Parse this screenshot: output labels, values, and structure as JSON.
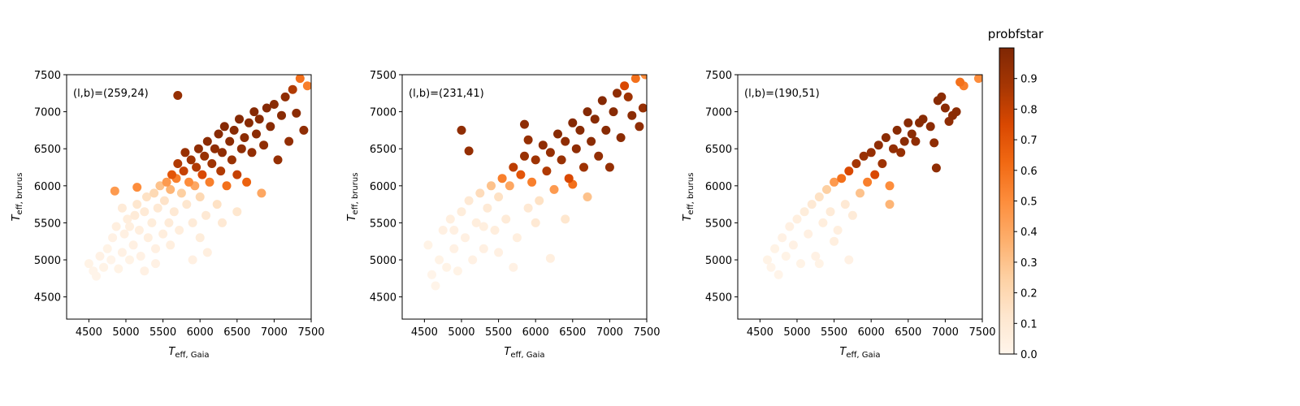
{
  "chart_data": [
    {
      "type": "scatter",
      "annotation": "(l,b)=(259,24)",
      "xlabel": {
        "main": "T",
        "sub": "eff, Gaia"
      },
      "ylabel": {
        "main": "T",
        "sub": "eff, brurus"
      },
      "xlim": [
        4200,
        7500
      ],
      "ylim": [
        4200,
        7500
      ],
      "xticks": [
        4500,
        5000,
        5500,
        6000,
        6500,
        7000,
        7500
      ],
      "yticks": [
        4500,
        5000,
        5500,
        6000,
        6500,
        7000,
        7500
      ],
      "points": [
        [
          4500,
          4950,
          0.02
        ],
        [
          4560,
          4850,
          0.01
        ],
        [
          4600,
          4780,
          0.01
        ],
        [
          4650,
          5050,
          0.03
        ],
        [
          4700,
          4900,
          0.02
        ],
        [
          4750,
          5150,
          0.02
        ],
        [
          4800,
          5000,
          0.01
        ],
        [
          4820,
          5300,
          0.03
        ],
        [
          4870,
          5450,
          0.05
        ],
        [
          4900,
          4880,
          0.02
        ],
        [
          4950,
          5100,
          0.03
        ],
        [
          4980,
          5350,
          0.04
        ],
        [
          5020,
          5550,
          0.06
        ],
        [
          5050,
          5000,
          0.02
        ],
        [
          5100,
          5200,
          0.04
        ],
        [
          5120,
          5600,
          0.08
        ],
        [
          5150,
          5750,
          0.12
        ],
        [
          5180,
          5400,
          0.05
        ],
        [
          5200,
          5050,
          0.03
        ],
        [
          5250,
          5650,
          0.09
        ],
        [
          5280,
          5850,
          0.15
        ],
        [
          5300,
          5300,
          0.05
        ],
        [
          5350,
          5500,
          0.07
        ],
        [
          5380,
          5900,
          0.2
        ],
        [
          5400,
          5150,
          0.04
        ],
        [
          5430,
          5700,
          0.1
        ],
        [
          5460,
          6000,
          0.3
        ],
        [
          5500,
          5350,
          0.06
        ],
        [
          5520,
          5800,
          0.14
        ],
        [
          5550,
          6050,
          0.45
        ],
        [
          5580,
          5500,
          0.08
        ],
        [
          5600,
          5950,
          0.35
        ],
        [
          5620,
          6150,
          0.7
        ],
        [
          5650,
          5650,
          0.1
        ],
        [
          5680,
          6100,
          0.55
        ],
        [
          5700,
          6300,
          0.85
        ],
        [
          5720,
          5400,
          0.06
        ],
        [
          5750,
          5900,
          0.25
        ],
        [
          5780,
          6200,
          0.8
        ],
        [
          5800,
          6450,
          0.92
        ],
        [
          5820,
          5750,
          0.12
        ],
        [
          5850,
          6050,
          0.5
        ],
        [
          5880,
          6350,
          0.9
        ],
        [
          5900,
          5500,
          0.08
        ],
        [
          5930,
          6000,
          0.4
        ],
        [
          5950,
          6250,
          0.85
        ],
        [
          5980,
          6500,
          0.95
        ],
        [
          6000,
          5850,
          0.2
        ],
        [
          6030,
          6150,
          0.75
        ],
        [
          6060,
          6400,
          0.92
        ],
        [
          6080,
          5600,
          0.1
        ],
        [
          6100,
          6600,
          0.96
        ],
        [
          6130,
          6050,
          0.55
        ],
        [
          6160,
          6300,
          0.9
        ],
        [
          6200,
          6500,
          0.95
        ],
        [
          6230,
          5750,
          0.15
        ],
        [
          6250,
          6700,
          0.97
        ],
        [
          6280,
          6200,
          0.85
        ],
        [
          6300,
          6450,
          0.95
        ],
        [
          6330,
          6800,
          0.98
        ],
        [
          6360,
          6000,
          0.6
        ],
        [
          6400,
          6600,
          0.96
        ],
        [
          6430,
          6350,
          0.92
        ],
        [
          6460,
          6750,
          0.97
        ],
        [
          6500,
          6150,
          0.8
        ],
        [
          6530,
          6900,
          0.98
        ],
        [
          6560,
          6500,
          0.95
        ],
        [
          6600,
          6650,
          0.96
        ],
        [
          6630,
          6050,
          0.65
        ],
        [
          6660,
          6850,
          0.97
        ],
        [
          6700,
          6450,
          0.94
        ],
        [
          6730,
          7000,
          0.98
        ],
        [
          6760,
          6700,
          0.96
        ],
        [
          6800,
          6900,
          0.97
        ],
        [
          6830,
          5900,
          0.4
        ],
        [
          6860,
          6550,
          0.95
        ],
        [
          6900,
          7050,
          0.98
        ],
        [
          6950,
          6800,
          0.97
        ],
        [
          7000,
          7100,
          0.97
        ],
        [
          7050,
          6350,
          0.93
        ],
        [
          7100,
          6950,
          0.97
        ],
        [
          7150,
          7200,
          0.95
        ],
        [
          7200,
          6600,
          0.94
        ],
        [
          7250,
          7300,
          0.85
        ],
        [
          7300,
          6980,
          0.96
        ],
        [
          7350,
          7450,
          0.6
        ],
        [
          7400,
          6750,
          0.95
        ],
        [
          7450,
          7350,
          0.55
        ],
        [
          5700,
          7220,
          0.93
        ],
        [
          4850,
          5930,
          0.45
        ],
        [
          5150,
          5980,
          0.5
        ],
        [
          5250,
          4850,
          0.03
        ],
        [
          5900,
          5000,
          0.04
        ],
        [
          6100,
          5100,
          0.05
        ],
        [
          5400,
          4950,
          0.03
        ],
        [
          5600,
          5200,
          0.05
        ],
        [
          6000,
          5300,
          0.07
        ],
        [
          6300,
          5500,
          0.1
        ],
        [
          6500,
          5650,
          0.12
        ],
        [
          4950,
          5700,
          0.08
        ],
        [
          5050,
          5450,
          0.05
        ]
      ]
    },
    {
      "type": "scatter",
      "annotation": "(l,b)=(231,41)",
      "xlabel": {
        "main": "T",
        "sub": "eff, Gaia"
      },
      "ylabel": {
        "main": "T",
        "sub": "eff, brurus"
      },
      "xlim": [
        4200,
        7500
      ],
      "ylim": [
        4200,
        7500
      ],
      "xticks": [
        4500,
        5000,
        5500,
        6000,
        6500,
        7000,
        7500
      ],
      "yticks": [
        4500,
        5000,
        5500,
        6000,
        6500,
        7000,
        7500
      ],
      "points": [
        [
          4550,
          5200,
          0.02
        ],
        [
          4600,
          4800,
          0.01
        ],
        [
          4650,
          4650,
          0.01
        ],
        [
          4700,
          5000,
          0.02
        ],
        [
          4750,
          5400,
          0.04
        ],
        [
          4800,
          4900,
          0.02
        ],
        [
          4850,
          5550,
          0.05
        ],
        [
          4900,
          5150,
          0.03
        ],
        [
          4950,
          4850,
          0.02
        ],
        [
          5000,
          5650,
          0.07
        ],
        [
          5050,
          5300,
          0.04
        ],
        [
          5100,
          5800,
          0.1
        ],
        [
          5150,
          5000,
          0.03
        ],
        [
          5200,
          5500,
          0.06
        ],
        [
          5250,
          5900,
          0.18
        ],
        [
          5300,
          5150,
          0.04
        ],
        [
          5350,
          5700,
          0.09
        ],
        [
          5400,
          6000,
          0.3
        ],
        [
          5450,
          5400,
          0.06
        ],
        [
          5500,
          5850,
          0.15
        ],
        [
          5550,
          6100,
          0.55
        ],
        [
          5600,
          5550,
          0.08
        ],
        [
          5650,
          6000,
          0.4
        ],
        [
          5700,
          6250,
          0.82
        ],
        [
          5750,
          5300,
          0.05
        ],
        [
          5800,
          6150,
          0.7
        ],
        [
          5850,
          6400,
          0.92
        ],
        [
          5900,
          5700,
          0.1
        ],
        [
          5950,
          6050,
          0.55
        ],
        [
          6000,
          6350,
          0.9
        ],
        [
          6050,
          5800,
          0.15
        ],
        [
          6100,
          6550,
          0.95
        ],
        [
          6150,
          6200,
          0.85
        ],
        [
          6200,
          6450,
          0.93
        ],
        [
          6250,
          5950,
          0.45
        ],
        [
          6300,
          6700,
          0.97
        ],
        [
          6350,
          6350,
          0.92
        ],
        [
          6400,
          6600,
          0.95
        ],
        [
          6450,
          6100,
          0.75
        ],
        [
          6500,
          6850,
          0.98
        ],
        [
          6550,
          6500,
          0.95
        ],
        [
          6600,
          6750,
          0.97
        ],
        [
          6650,
          6250,
          0.9
        ],
        [
          6700,
          7000,
          0.98
        ],
        [
          6750,
          6600,
          0.96
        ],
        [
          6800,
          6900,
          0.97
        ],
        [
          6850,
          6400,
          0.94
        ],
        [
          6900,
          7150,
          0.98
        ],
        [
          6950,
          6750,
          0.97
        ],
        [
          7000,
          6250,
          0.93
        ],
        [
          7050,
          7000,
          0.97
        ],
        [
          7100,
          7250,
          0.95
        ],
        [
          7150,
          6650,
          0.96
        ],
        [
          7200,
          7350,
          0.75
        ],
        [
          7250,
          7200,
          0.9
        ],
        [
          7300,
          6950,
          0.96
        ],
        [
          7350,
          7450,
          0.6
        ],
        [
          7400,
          6800,
          0.95
        ],
        [
          7450,
          7050,
          0.93
        ],
        [
          7480,
          7500,
          0.5
        ],
        [
          5000,
          6750,
          0.95
        ],
        [
          5100,
          6470,
          0.93
        ],
        [
          5850,
          6830,
          0.95
        ],
        [
          5900,
          6620,
          0.93
        ],
        [
          6200,
          5020,
          0.05
        ],
        [
          5700,
          4900,
          0.03
        ],
        [
          5500,
          5100,
          0.04
        ],
        [
          6000,
          5500,
          0.1
        ],
        [
          6400,
          5550,
          0.12
        ],
        [
          6700,
          5850,
          0.3
        ],
        [
          6500,
          6020,
          0.6
        ],
        [
          4900,
          5400,
          0.04
        ],
        [
          5300,
          5450,
          0.05
        ]
      ]
    },
    {
      "type": "scatter",
      "annotation": "(l,b)=(190,51)",
      "xlabel": {
        "main": "T",
        "sub": "eff, Gaia"
      },
      "ylabel": {
        "main": "T",
        "sub": "eff, brurus"
      },
      "xlim": [
        4200,
        7500
      ],
      "ylim": [
        4200,
        7500
      ],
      "xticks": [
        4500,
        5000,
        5500,
        6000,
        6500,
        7000,
        7500
      ],
      "yticks": [
        4500,
        5000,
        5500,
        6000,
        6500,
        7000,
        7500
      ],
      "points": [
        [
          4600,
          5000,
          0.02
        ],
        [
          4650,
          4900,
          0.01
        ],
        [
          4700,
          5150,
          0.02
        ],
        [
          4750,
          4800,
          0.01
        ],
        [
          4800,
          5300,
          0.03
        ],
        [
          4850,
          5050,
          0.02
        ],
        [
          4900,
          5450,
          0.04
        ],
        [
          4950,
          5200,
          0.03
        ],
        [
          5000,
          5550,
          0.05
        ],
        [
          5050,
          4950,
          0.02
        ],
        [
          5100,
          5650,
          0.07
        ],
        [
          5150,
          5350,
          0.04
        ],
        [
          5200,
          5750,
          0.1
        ],
        [
          5250,
          5050,
          0.03
        ],
        [
          5300,
          5850,
          0.15
        ],
        [
          5350,
          5500,
          0.06
        ],
        [
          5400,
          5950,
          0.25
        ],
        [
          5450,
          5650,
          0.08
        ],
        [
          5500,
          6050,
          0.45
        ],
        [
          5550,
          5400,
          0.05
        ],
        [
          5600,
          6100,
          0.6
        ],
        [
          5650,
          5750,
          0.1
        ],
        [
          5700,
          6200,
          0.75
        ],
        [
          5750,
          5600,
          0.08
        ],
        [
          5800,
          6300,
          0.88
        ],
        [
          5850,
          5900,
          0.3
        ],
        [
          5900,
          6400,
          0.92
        ],
        [
          5950,
          6050,
          0.55
        ],
        [
          6000,
          6450,
          0.93
        ],
        [
          6050,
          6150,
          0.75
        ],
        [
          6100,
          6550,
          0.95
        ],
        [
          6150,
          6300,
          0.9
        ],
        [
          6200,
          6650,
          0.96
        ],
        [
          6250,
          6000,
          0.5
        ],
        [
          6300,
          6500,
          0.94
        ],
        [
          6350,
          6750,
          0.97
        ],
        [
          6400,
          6450,
          0.93
        ],
        [
          6450,
          6600,
          0.96
        ],
        [
          6500,
          6850,
          0.97
        ],
        [
          6550,
          6700,
          0.96
        ],
        [
          6600,
          6600,
          0.95
        ],
        [
          6650,
          6850,
          0.97
        ],
        [
          6700,
          6900,
          0.97
        ],
        [
          6800,
          6800,
          0.96
        ],
        [
          6850,
          6580,
          0.95
        ],
        [
          6900,
          7150,
          0.97
        ],
        [
          6950,
          7200,
          0.96
        ],
        [
          7000,
          7050,
          0.96
        ],
        [
          7050,
          6870,
          0.95
        ],
        [
          7100,
          6950,
          0.96
        ],
        [
          7150,
          7000,
          0.96
        ],
        [
          7200,
          7400,
          0.6
        ],
        [
          7250,
          7350,
          0.55
        ],
        [
          7450,
          7450,
          0.5
        ],
        [
          6880,
          6240,
          0.95
        ],
        [
          5500,
          5250,
          0.05
        ],
        [
          5700,
          5000,
          0.03
        ],
        [
          5300,
          4950,
          0.02
        ],
        [
          6250,
          5750,
          0.35
        ]
      ]
    }
  ],
  "colorbar": {
    "title": "probfstar",
    "ticks": [
      "0.0",
      "0.1",
      "0.2",
      "0.3",
      "0.4",
      "0.5",
      "0.6",
      "0.7",
      "0.8",
      "0.9"
    ],
    "tick_values": [
      0,
      0.1,
      0.2,
      0.3,
      0.4,
      0.5,
      0.6,
      0.7,
      0.8,
      0.9
    ],
    "range": [
      0,
      1
    ],
    "colormap": [
      "#fff5eb",
      "#fee6ce",
      "#fdd0a2",
      "#fdae6b",
      "#fd8d3c",
      "#f16913",
      "#d94801",
      "#a63603",
      "#7f2704"
    ]
  }
}
